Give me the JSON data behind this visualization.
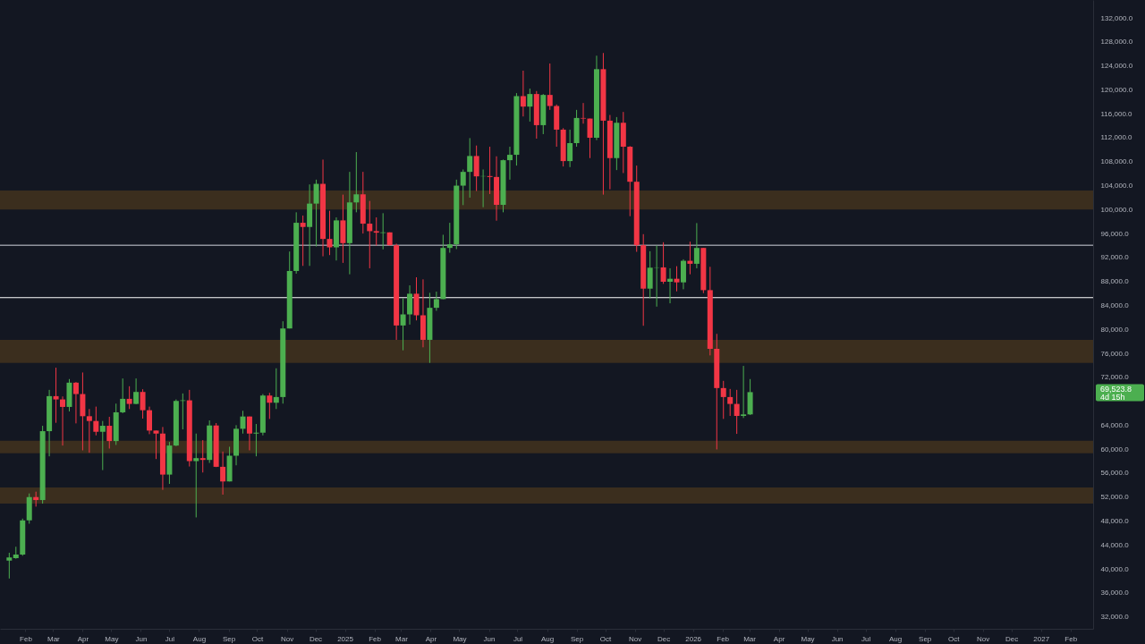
{
  "chart_data": {
    "type": "candlestick",
    "x": [
      "2024-01-15",
      "2024-01-22",
      "2024-01-29",
      "2024-02-05",
      "2024-02-12",
      "2024-02-19",
      "2024-02-26",
      "2024-03-04",
      "2024-03-11",
      "2024-03-18",
      "2024-03-25",
      "2024-04-01",
      "2024-04-08",
      "2024-04-15",
      "2024-04-22",
      "2024-04-29",
      "2024-05-06",
      "2024-05-13",
      "2024-05-20",
      "2024-05-27",
      "2024-06-03",
      "2024-06-10",
      "2024-06-17",
      "2024-06-24",
      "2024-07-01",
      "2024-07-08",
      "2024-07-15",
      "2024-07-22",
      "2024-07-29",
      "2024-08-05",
      "2024-08-12",
      "2024-08-19",
      "2024-08-26",
      "2024-09-02",
      "2024-09-09",
      "2024-09-16",
      "2024-09-23",
      "2024-09-30",
      "2024-10-07",
      "2024-10-14",
      "2024-10-21",
      "2024-10-28",
      "2024-11-04",
      "2024-11-11",
      "2024-11-18",
      "2024-11-25",
      "2024-12-02",
      "2024-12-09",
      "2024-12-16",
      "2024-12-23",
      "2024-12-30",
      "2025-01-06",
      "2025-01-13",
      "2025-01-20",
      "2025-01-27",
      "2025-02-03",
      "2025-02-10",
      "2025-02-17",
      "2025-02-24",
      "2025-03-03",
      "2025-03-10",
      "2025-03-17",
      "2025-03-24",
      "2025-03-31",
      "2025-04-07",
      "2025-04-14",
      "2025-04-21",
      "2025-04-28",
      "2025-05-05",
      "2025-05-12",
      "2025-05-19",
      "2025-05-26",
      "2025-06-02",
      "2025-06-09",
      "2025-06-16",
      "2025-06-23",
      "2025-06-30",
      "2025-07-07",
      "2025-07-14",
      "2025-07-21",
      "2025-07-28",
      "2025-08-04",
      "2025-08-11",
      "2025-08-18",
      "2025-08-25",
      "2025-09-01",
      "2025-09-08",
      "2025-09-15",
      "2025-09-22",
      "2025-09-29",
      "2025-10-06",
      "2025-10-13",
      "2025-10-20",
      "2025-10-27",
      "2025-11-03",
      "2025-11-10",
      "2025-11-17",
      "2025-11-24",
      "2025-12-01",
      "2025-12-08",
      "2025-12-15",
      "2025-12-22",
      "2025-12-29",
      "2026-01-05",
      "2026-01-12",
      "2026-01-19",
      "2026-01-26",
      "2026-02-02",
      "2026-02-09",
      "2026-02-16",
      "2026-02-23",
      "2026-03-02"
    ],
    "ohlc": [
      [
        41400,
        42700,
        38400,
        41900
      ],
      [
        41800,
        43700,
        41700,
        42400
      ],
      [
        42400,
        48400,
        42200,
        48100
      ],
      [
        48100,
        52600,
        47550,
        52000
      ],
      [
        52000,
        52900,
        50400,
        51500
      ],
      [
        51500,
        63900,
        50900,
        63000
      ],
      [
        63000,
        69900,
        58800,
        68850
      ],
      [
        68850,
        73600,
        64400,
        68300
      ],
      [
        68300,
        68800,
        60600,
        67050
      ],
      [
        67050,
        71700,
        66300,
        71100
      ],
      [
        71100,
        71200,
        64300,
        69200
      ],
      [
        69200,
        72800,
        59800,
        65500
      ],
      [
        65500,
        66700,
        59400,
        64700
      ],
      [
        64700,
        67100,
        62300,
        62900
      ],
      [
        62900,
        64700,
        56500,
        63900
      ],
      [
        63900,
        65400,
        60100,
        61350
      ],
      [
        61350,
        67600,
        60700,
        66150
      ],
      [
        66150,
        71800,
        66000,
        68400
      ],
      [
        68400,
        70500,
        66700,
        67550
      ],
      [
        67550,
        71800,
        67500,
        69550
      ],
      [
        69550,
        70000,
        65100,
        66500
      ],
      [
        66500,
        67100,
        62500,
        63100
      ],
      [
        63100,
        63100,
        58350,
        62600
      ],
      [
        62600,
        63700,
        53200,
        55750
      ],
      [
        55750,
        61200,
        54200,
        60600
      ],
      [
        60600,
        68300,
        60500,
        68050
      ],
      [
        68050,
        69300,
        63300,
        68150
      ],
      [
        68150,
        69900,
        57100,
        58000
      ],
      [
        58000,
        62600,
        48600,
        58500
      ],
      [
        58500,
        61500,
        56100,
        58200
      ],
      [
        58200,
        64800,
        57700,
        63950
      ],
      [
        63950,
        64350,
        57000,
        57050
      ],
      [
        57050,
        59600,
        52400,
        54600
      ],
      [
        54600,
        60400,
        54600,
        58900
      ],
      [
        58900,
        64000,
        57300,
        63400
      ],
      [
        63400,
        66400,
        62600,
        65450
      ],
      [
        65450,
        65450,
        59800,
        62600
      ],
      [
        62600,
        64200,
        58800,
        62750
      ],
      [
        62750,
        69200,
        62300,
        68950
      ],
      [
        68950,
        69400,
        65050,
        67750
      ],
      [
        67750,
        73500,
        66700,
        68700
      ],
      [
        68700,
        81350,
        67600,
        80150
      ],
      [
        80150,
        93000,
        80150,
        89750
      ],
      [
        89750,
        99550,
        89300,
        97800
      ],
      [
        97800,
        99000,
        90600,
        97100
      ],
      [
        97100,
        104200,
        90600,
        101000
      ],
      [
        101000,
        105000,
        93850,
        104300
      ],
      [
        104300,
        108350,
        92200,
        95100
      ],
      [
        95100,
        99800,
        92400,
        93700
      ],
      [
        93700,
        98700,
        91500,
        98200
      ],
      [
        98200,
        102500,
        91100,
        94400
      ],
      [
        94400,
        106300,
        89200,
        101200
      ],
      [
        101200,
        109600,
        99550,
        102550
      ],
      [
        102550,
        106300,
        96000,
        97650
      ],
      [
        97650,
        101450,
        90200,
        96400
      ],
      [
        96400,
        98700,
        94000,
        96150
      ],
      [
        96100,
        99400,
        93350,
        96200
      ],
      [
        96200,
        96200,
        94000,
        94050
      ],
      [
        94050,
        94300,
        78250,
        80650
      ],
      [
        80650,
        85200,
        76500,
        82500
      ],
      [
        82500,
        87350,
        80800,
        85950
      ],
      [
        85950,
        88700,
        81500,
        82350
      ],
      [
        82350,
        88350,
        77000,
        78250
      ],
      [
        78250,
        86100,
        74400,
        83600
      ],
      [
        83600,
        86300,
        83100,
        85050
      ],
      [
        85050,
        95800,
        85050,
        93600
      ],
      [
        93600,
        97800,
        92800,
        94200
      ],
      [
        94200,
        105000,
        93400,
        104000
      ],
      [
        104000,
        106700,
        100750,
        106300
      ],
      [
        106300,
        111940,
        102000,
        108950
      ],
      [
        108950,
        110700,
        103100,
        105550
      ],
      [
        105550,
        106700,
        100400,
        105600
      ],
      [
        105600,
        110500,
        102600,
        105450
      ],
      [
        105450,
        108900,
        98150,
        100800
      ],
      [
        100800,
        108350,
        99550,
        108250
      ],
      [
        108250,
        110500,
        105000,
        109150
      ],
      [
        109150,
        119450,
        107350,
        118950
      ],
      [
        118950,
        123200,
        115550,
        117200
      ],
      [
        117200,
        120200,
        114700,
        119300
      ],
      [
        119300,
        119800,
        111850,
        114100
      ],
      [
        114100,
        119300,
        112600,
        119150
      ],
      [
        119150,
        124400,
        116650,
        117300
      ],
      [
        117300,
        117550,
        110500,
        113350
      ],
      [
        113350,
        113600,
        107200,
        108100
      ],
      [
        108100,
        113350,
        107100,
        111100
      ],
      [
        111100,
        116650,
        110500,
        115300
      ],
      [
        115300,
        117800,
        114350,
        115200
      ],
      [
        115200,
        115200,
        108600,
        112000
      ],
      [
        112000,
        125700,
        111600,
        123450
      ],
      [
        123450,
        126150,
        102500,
        114850
      ],
      [
        114850,
        115800,
        103400,
        108600
      ],
      [
        108600,
        115450,
        106600,
        114500
      ],
      [
        114500,
        116300,
        106100,
        110500
      ],
      [
        110500,
        110600,
        98900,
        104650
      ],
      [
        104650,
        107350,
        92950,
        94050
      ],
      [
        94050,
        95900,
        80600,
        86800
      ],
      [
        86800,
        93050,
        85200,
        90300
      ],
      [
        90300,
        94000,
        83800,
        90350
      ],
      [
        90350,
        94550,
        87600,
        87950
      ],
      [
        87950,
        90200,
        84350,
        88450
      ],
      [
        88450,
        90550,
        86350,
        87850
      ],
      [
        87850,
        91700,
        86700,
        91450
      ],
      [
        91450,
        94650,
        89200,
        90950
      ],
      [
        90950,
        97750,
        90200,
        93600
      ],
      [
        93600,
        93600,
        86050,
        86550
      ],
      [
        86550,
        90450,
        75650,
        76750
      ],
      [
        76750,
        79250,
        59950,
        70200
      ],
      [
        70200,
        71400,
        65050,
        68700
      ],
      [
        68700,
        70050,
        65550,
        67550
      ],
      [
        67550,
        69900,
        62550,
        65550
      ],
      [
        65550,
        73900,
        65200,
        65800
      ],
      [
        65800,
        71700,
        65700,
        69520
      ]
    ],
    "xlim": [
      "2024-01-10",
      "2027-02-20"
    ],
    "xticks": [
      {
        "value": "2024-02",
        "label": "Feb"
      },
      {
        "value": "2024-03",
        "label": "Mar"
      },
      {
        "value": "2024-04",
        "label": "Apr"
      },
      {
        "value": "2024-05",
        "label": "May"
      },
      {
        "value": "2024-06",
        "label": "Jun"
      },
      {
        "value": "2024-07",
        "label": "Jul"
      },
      {
        "value": "2024-08",
        "label": "Aug"
      },
      {
        "value": "2024-09",
        "label": "Sep"
      },
      {
        "value": "2024-10",
        "label": "Oct"
      },
      {
        "value": "2024-11",
        "label": "Nov"
      },
      {
        "value": "2024-12",
        "label": "Dec"
      },
      {
        "value": "2025-01",
        "label": "2025"
      },
      {
        "value": "2025-02",
        "label": "Feb"
      },
      {
        "value": "2025-03",
        "label": "Mar"
      },
      {
        "value": "2025-04",
        "label": "Apr"
      },
      {
        "value": "2025-05",
        "label": "May"
      },
      {
        "value": "2025-06",
        "label": "Jun"
      },
      {
        "value": "2025-07",
        "label": "Jul"
      },
      {
        "value": "2025-08",
        "label": "Aug"
      },
      {
        "value": "2025-09",
        "label": "Sep"
      },
      {
        "value": "2025-10",
        "label": "Oct"
      },
      {
        "value": "2025-11",
        "label": "Nov"
      },
      {
        "value": "2025-12",
        "label": "Dec"
      },
      {
        "value": "2026-01",
        "label": "2026"
      },
      {
        "value": "2026-02",
        "label": "Feb"
      },
      {
        "value": "2026-03",
        "label": "Mar"
      },
      {
        "value": "2026-04",
        "label": "Apr"
      },
      {
        "value": "2026-05",
        "label": "May"
      },
      {
        "value": "2026-06",
        "label": "Jun"
      },
      {
        "value": "2026-07",
        "label": "Jul"
      },
      {
        "value": "2026-08",
        "label": "Aug"
      },
      {
        "value": "2026-09",
        "label": "Sep"
      },
      {
        "value": "2026-10",
        "label": "Oct"
      },
      {
        "value": "2026-11",
        "label": "Nov"
      },
      {
        "value": "2026-12",
        "label": "Dec"
      },
      {
        "value": "2027-01",
        "label": "2027"
      },
      {
        "value": "2027-02",
        "label": "Feb"
      }
    ],
    "ylim": [
      30000,
      135000
    ],
    "yticks": [
      {
        "value": 32000,
        "label": "32,000.0"
      },
      {
        "value": 36000,
        "label": "36,000.0"
      },
      {
        "value": 40000,
        "label": "40,000.0"
      },
      {
        "value": 44000,
        "label": "44,000.0"
      },
      {
        "value": 48000,
        "label": "48,000.0"
      },
      {
        "value": 52000,
        "label": "52,000.0"
      },
      {
        "value": 56000,
        "label": "56,000.0"
      },
      {
        "value": 60000,
        "label": "60,000.0"
      },
      {
        "value": 64000,
        "label": "64,000.0"
      },
      {
        "value": 72000,
        "label": "72,000.0"
      },
      {
        "value": 76000,
        "label": "76,000.0"
      },
      {
        "value": 80000,
        "label": "80,000.0"
      },
      {
        "value": 84000,
        "label": "84,000.0"
      },
      {
        "value": 88000,
        "label": "88,000.0"
      },
      {
        "value": 92000,
        "label": "92,000.0"
      },
      {
        "value": 96000,
        "label": "96,000.0"
      },
      {
        "value": 100000,
        "label": "100,000.0"
      },
      {
        "value": 104000,
        "label": "104,000.0"
      },
      {
        "value": 108000,
        "label": "108,000.0"
      },
      {
        "value": 112000,
        "label": "112,000.0"
      },
      {
        "value": 116000,
        "label": "116,000.0"
      },
      {
        "value": 120000,
        "label": "120,000.0"
      },
      {
        "value": 124000,
        "label": "124,000.0"
      },
      {
        "value": 128000,
        "label": "128,000.0"
      },
      {
        "value": 132000,
        "label": "132,000.0"
      }
    ],
    "bands": [
      {
        "axis": "y",
        "from": 100000,
        "to": 103200,
        "color": "#3b2e1e"
      },
      {
        "axis": "y",
        "from": 74400,
        "to": 78250,
        "color": "#3b2e1e"
      },
      {
        "axis": "y",
        "from": 59300,
        "to": 61400,
        "color": "#3b2e1e"
      },
      {
        "axis": "y",
        "from": 50900,
        "to": 53600,
        "color": "#3b2e1e"
      }
    ],
    "ref_lines": [
      {
        "axis": "y",
        "value": 94050,
        "color": "#d1d4dc",
        "line_style": "solid"
      },
      {
        "axis": "y",
        "value": 85300,
        "color": "#ffffff",
        "line_style": "solid"
      }
    ],
    "annotations": [
      "69,523.8",
      "4d 15h"
    ]
  }
}
